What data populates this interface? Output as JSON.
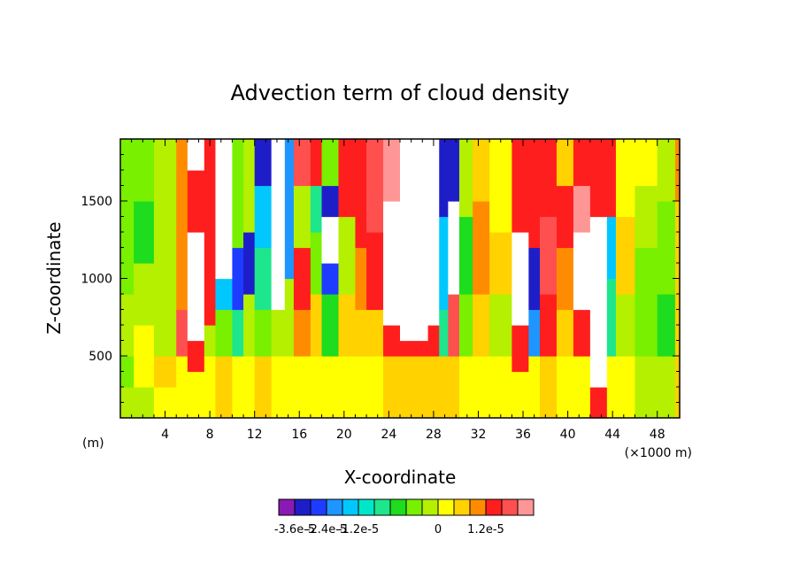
{
  "chart_data": {
    "type": "heatmap",
    "title": "Advection term of cloud density",
    "xlabel": "X-coordinate",
    "ylabel": "Z-coordinate",
    "x_unit_left": "(m)",
    "x_unit_right": "(×1000 m)",
    "xlim": [
      0,
      50
    ],
    "ylim": [
      100,
      1900
    ],
    "x_ticks": [
      "4",
      "8",
      "12",
      "16",
      "20",
      "24",
      "28",
      "32",
      "36",
      "40",
      "44",
      "48"
    ],
    "y_ticks": [
      "500",
      "1000",
      "1500"
    ],
    "colorbar": {
      "colors": [
        "#8a1ab4",
        "#1e1ec8",
        "#1e3cff",
        "#1e96ff",
        "#00c8ff",
        "#00e6c8",
        "#1ee68c",
        "#1edc1e",
        "#78f000",
        "#b4f000",
        "#ffff00",
        "#ffd200",
        "#ff8c00",
        "#ff1e1e",
        "#ff5050",
        "#ff9696"
      ],
      "labels": [
        "-3.6e-5",
        "-2.4e-5",
        "-1.2e-5",
        "0",
        "1.2e-5"
      ],
      "above_top": "#ffffff"
    },
    "columns": [
      {
        "x": [
          0,
          1.2
        ],
        "bands": [
          [
            100,
            300,
            "#b4f000"
          ],
          [
            300,
            500,
            "#78f000"
          ],
          [
            500,
            900,
            "#b4f000"
          ],
          [
            900,
            1900,
            "#78f000"
          ]
        ]
      },
      {
        "x": [
          1.2,
          3
        ],
        "bands": [
          [
            100,
            300,
            "#b4f000"
          ],
          [
            300,
            700,
            "#ffff00"
          ],
          [
            700,
            1100,
            "#b4f000"
          ],
          [
            1100,
            1500,
            "#1edc1e"
          ],
          [
            1500,
            1900,
            "#78f000"
          ]
        ]
      },
      {
        "x": [
          3,
          5
        ],
        "bands": [
          [
            100,
            300,
            "#ffff00"
          ],
          [
            300,
            500,
            "#ffd200"
          ],
          [
            500,
            900,
            "#b4f000"
          ],
          [
            900,
            1900,
            "#b4f000"
          ]
        ]
      },
      {
        "x": [
          5,
          6
        ],
        "bands": [
          [
            100,
            500,
            "#ffff00"
          ],
          [
            500,
            800,
            "#ff5050"
          ],
          [
            800,
            1900,
            "#ff8c00"
          ]
        ]
      },
      {
        "x": [
          6,
          7.5
        ],
        "bands": [
          [
            100,
            400,
            "#ffff00"
          ],
          [
            400,
            600,
            "#ff1e1e"
          ],
          [
            600,
            1300,
            "#ffffff"
          ],
          [
            1300,
            1700,
            "#ff1e1e"
          ],
          [
            1700,
            1900,
            "#ffffff"
          ]
        ]
      },
      {
        "x": [
          7.5,
          8.5
        ],
        "bands": [
          [
            100,
            500,
            "#ffff00"
          ],
          [
            500,
            700,
            "#b4f000"
          ],
          [
            700,
            1900,
            "#ff1e1e"
          ]
        ]
      },
      {
        "x": [
          8.5,
          10
        ],
        "bands": [
          [
            100,
            500,
            "#ffd200"
          ],
          [
            500,
            800,
            "#78f000"
          ],
          [
            800,
            1000,
            "#00c8ff"
          ],
          [
            1000,
            1900,
            "#ffffff"
          ]
        ]
      },
      {
        "x": [
          10,
          11
        ],
        "bands": [
          [
            100,
            500,
            "#ffff00"
          ],
          [
            500,
            800,
            "#1ee68c"
          ],
          [
            800,
            1200,
            "#1e3cff"
          ],
          [
            1200,
            1900,
            "#78f000"
          ]
        ]
      },
      {
        "x": [
          11,
          12
        ],
        "bands": [
          [
            100,
            500,
            "#ffff00"
          ],
          [
            500,
            900,
            "#b4f000"
          ],
          [
            900,
            1300,
            "#1e1ec8"
          ],
          [
            1300,
            1900,
            "#b4f000"
          ]
        ]
      },
      {
        "x": [
          12,
          13.5
        ],
        "bands": [
          [
            100,
            500,
            "#ffd200"
          ],
          [
            500,
            800,
            "#78f000"
          ],
          [
            800,
            1200,
            "#1ee68c"
          ],
          [
            1200,
            1600,
            "#00c8ff"
          ],
          [
            1600,
            1900,
            "#1e1ec8"
          ]
        ]
      },
      {
        "x": [
          13.5,
          14.7
        ],
        "bands": [
          [
            100,
            500,
            "#ffff00"
          ],
          [
            500,
            800,
            "#b4f000"
          ],
          [
            800,
            1900,
            "#ffffff"
          ]
        ]
      },
      {
        "x": [
          14.7,
          15.5
        ],
        "bands": [
          [
            100,
            500,
            "#ffff00"
          ],
          [
            500,
            1000,
            "#b4f000"
          ],
          [
            1000,
            1900,
            "#1e96ff"
          ]
        ]
      },
      {
        "x": [
          15.5,
          17
        ],
        "bands": [
          [
            100,
            500,
            "#ffff00"
          ],
          [
            500,
            800,
            "#ff8c00"
          ],
          [
            800,
            1200,
            "#ff1e1e"
          ],
          [
            1200,
            1600,
            "#b4f000"
          ],
          [
            1600,
            1900,
            "#ff5050"
          ]
        ]
      },
      {
        "x": [
          17,
          18
        ],
        "bands": [
          [
            100,
            500,
            "#ffff00"
          ],
          [
            500,
            900,
            "#ffd200"
          ],
          [
            900,
            1300,
            "#78f000"
          ],
          [
            1300,
            1600,
            "#1ee68c"
          ],
          [
            1600,
            1900,
            "#ff1e1e"
          ]
        ]
      },
      {
        "x": [
          18,
          19.5
        ],
        "bands": [
          [
            100,
            500,
            "#ffff00"
          ],
          [
            500,
            900,
            "#1edc1e"
          ],
          [
            900,
            1100,
            "#1e3cff"
          ],
          [
            1100,
            1400,
            "#ffffff"
          ],
          [
            1400,
            1600,
            "#1e1ec8"
          ],
          [
            1600,
            1900,
            "#78f000"
          ]
        ]
      },
      {
        "x": [
          19.5,
          21
        ],
        "bands": [
          [
            100,
            500,
            "#ffff00"
          ],
          [
            500,
            900,
            "#ffd200"
          ],
          [
            900,
            1400,
            "#b4f000"
          ],
          [
            1400,
            1900,
            "#ff1e1e"
          ]
        ]
      },
      {
        "x": [
          21,
          22
        ],
        "bands": [
          [
            100,
            500,
            "#ffff00"
          ],
          [
            500,
            800,
            "#ffd200"
          ],
          [
            800,
            1200,
            "#ff8c00"
          ],
          [
            1200,
            1900,
            "#ff1e1e"
          ]
        ]
      },
      {
        "x": [
          22,
          23.5
        ],
        "bands": [
          [
            100,
            500,
            "#ffff00"
          ],
          [
            500,
            800,
            "#ffd200"
          ],
          [
            800,
            1300,
            "#ff1e1e"
          ],
          [
            1300,
            1900,
            "#ff5050"
          ]
        ]
      },
      {
        "x": [
          23.5,
          25
        ],
        "bands": [
          [
            100,
            500,
            "#ffd200"
          ],
          [
            500,
            700,
            "#ff1e1e"
          ],
          [
            700,
            1500,
            "#ffffff"
          ],
          [
            1500,
            1900,
            "#ff9696"
          ]
        ]
      },
      {
        "x": [
          25,
          27.5
        ],
        "bands": [
          [
            100,
            500,
            "#ffd200"
          ],
          [
            500,
            600,
            "#ff1e1e"
          ],
          [
            600,
            1900,
            "#ffffff"
          ]
        ]
      },
      {
        "x": [
          27.5,
          28.5
        ],
        "bands": [
          [
            100,
            500,
            "#ffd200"
          ],
          [
            500,
            700,
            "#ff1e1e"
          ],
          [
            700,
            1900,
            "#ffffff"
          ]
        ]
      },
      {
        "x": [
          28.5,
          29.3
        ],
        "bands": [
          [
            100,
            500,
            "#ffd200"
          ],
          [
            500,
            800,
            "#1ee68c"
          ],
          [
            800,
            1400,
            "#00c8ff"
          ],
          [
            1400,
            1900,
            "#1e1ec8"
          ]
        ]
      },
      {
        "x": [
          29.3,
          30.3
        ],
        "bands": [
          [
            100,
            500,
            "#ffd200"
          ],
          [
            500,
            900,
            "#ff5050"
          ],
          [
            900,
            1500,
            "#ffffff"
          ],
          [
            1500,
            1900,
            "#1e1ec8"
          ]
        ]
      },
      {
        "x": [
          30.3,
          31.5
        ],
        "bands": [
          [
            100,
            500,
            "#ffff00"
          ],
          [
            500,
            900,
            "#78f000"
          ],
          [
            900,
            1400,
            "#1edc1e"
          ],
          [
            1400,
            1900,
            "#b4f000"
          ]
        ]
      },
      {
        "x": [
          31.5,
          33
        ],
        "bands": [
          [
            100,
            500,
            "#ffff00"
          ],
          [
            500,
            900,
            "#ffd200"
          ],
          [
            900,
            1500,
            "#ff8c00"
          ],
          [
            1500,
            1900,
            "#ffd200"
          ]
        ]
      },
      {
        "x": [
          33,
          35
        ],
        "bands": [
          [
            100,
            500,
            "#ffff00"
          ],
          [
            500,
            900,
            "#b4f000"
          ],
          [
            900,
            1300,
            "#ffd200"
          ],
          [
            1300,
            1900,
            "#ffff00"
          ]
        ]
      },
      {
        "x": [
          35,
          36.5
        ],
        "bands": [
          [
            100,
            400,
            "#ffff00"
          ],
          [
            400,
            700,
            "#ff1e1e"
          ],
          [
            700,
            1300,
            "#ffffff"
          ],
          [
            1300,
            1900,
            "#ff1e1e"
          ]
        ]
      },
      {
        "x": [
          36.5,
          37.5
        ],
        "bands": [
          [
            100,
            500,
            "#ffff00"
          ],
          [
            500,
            800,
            "#1e96ff"
          ],
          [
            800,
            1200,
            "#1e1ec8"
          ],
          [
            1200,
            1900,
            "#ff1e1e"
          ]
        ]
      },
      {
        "x": [
          37.5,
          39
        ],
        "bands": [
          [
            100,
            500,
            "#ffd200"
          ],
          [
            500,
            900,
            "#ff1e1e"
          ],
          [
            900,
            1400,
            "#ff5050"
          ],
          [
            1400,
            1900,
            "#ff1e1e"
          ]
        ]
      },
      {
        "x": [
          39,
          40.5
        ],
        "bands": [
          [
            100,
            500,
            "#ffff00"
          ],
          [
            500,
            800,
            "#ffd200"
          ],
          [
            800,
            1200,
            "#ff8c00"
          ],
          [
            1200,
            1600,
            "#ff1e1e"
          ],
          [
            1600,
            1900,
            "#ffd200"
          ]
        ]
      },
      {
        "x": [
          40.5,
          42
        ],
        "bands": [
          [
            100,
            500,
            "#ffff00"
          ],
          [
            500,
            800,
            "#ff1e1e"
          ],
          [
            800,
            1300,
            "#ffffff"
          ],
          [
            1300,
            1600,
            "#ff9696"
          ],
          [
            1600,
            1900,
            "#ff1e1e"
          ]
        ]
      },
      {
        "x": [
          42,
          43.5
        ],
        "bands": [
          [
            100,
            300,
            "#ff1e1e"
          ],
          [
            300,
            1400,
            "#ffffff"
          ],
          [
            1400,
            1900,
            "#ff1e1e"
          ]
        ]
      },
      {
        "x": [
          43.5,
          44.3
        ],
        "bands": [
          [
            100,
            500,
            "#ffff00"
          ],
          [
            500,
            1000,
            "#1ee68c"
          ],
          [
            1000,
            1400,
            "#00c8ff"
          ],
          [
            1400,
            1900,
            "#ff1e1e"
          ]
        ]
      },
      {
        "x": [
          44.3,
          46
        ],
        "bands": [
          [
            100,
            500,
            "#ffff00"
          ],
          [
            500,
            900,
            "#b4f000"
          ],
          [
            900,
            1400,
            "#ffd200"
          ],
          [
            1400,
            1900,
            "#ffff00"
          ]
        ]
      },
      {
        "x": [
          46,
          48
        ],
        "bands": [
          [
            100,
            500,
            "#b4f000"
          ],
          [
            500,
            1200,
            "#78f000"
          ],
          [
            1200,
            1600,
            "#b4f000"
          ],
          [
            1600,
            1900,
            "#ffff00"
          ]
        ]
      },
      {
        "x": [
          48,
          49.6
        ],
        "bands": [
          [
            100,
            500,
            "#b4f000"
          ],
          [
            500,
            900,
            "#1edc1e"
          ],
          [
            900,
            1500,
            "#78f000"
          ],
          [
            1500,
            1900,
            "#b4f000"
          ]
        ]
      },
      {
        "x": [
          49.6,
          50
        ],
        "bands": [
          [
            100,
            1500,
            "#ffd200"
          ],
          [
            1500,
            1900,
            "#ff8c00"
          ]
        ]
      }
    ]
  }
}
